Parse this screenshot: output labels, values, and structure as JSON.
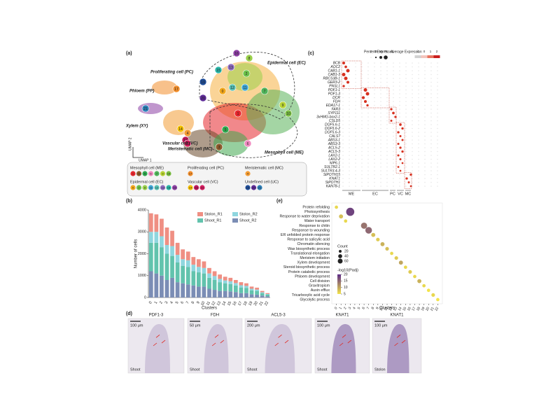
{
  "panel_letters": [
    "(a)",
    "(b)",
    "(c)",
    "(d)",
    "(e)"
  ],
  "panel_a": {
    "clusters": [
      0,
      1,
      2,
      3,
      4,
      5,
      6,
      7,
      8,
      9,
      10,
      11,
      12,
      13,
      14,
      15,
      16,
      17,
      18,
      19,
      20,
      21,
      22
    ],
    "cluster_colors": [
      "#f2a71b",
      "#e6262c",
      "#6cc24a",
      "#8b5a2b",
      "#f39c34",
      "#2fa84f",
      "#f08ac0",
      "#4fb35a",
      "#9ad04b",
      "#b7d334",
      "#7bc043",
      "#3fa7d6",
      "#59c2b5",
      "#8e6bbf",
      "#f5c000",
      "#2ab7a9",
      "#8d3fa4",
      "#f28e2b",
      "#c2185b",
      "#1f4e9a",
      "#5e2b97",
      "#2c7fb8",
      "#d81b60"
    ],
    "region_labels": [
      "Epidermal cell (EC)",
      "Proliferating cell (PC)",
      "Phloem (PP)",
      "Xylem (XY)",
      "Vascular cell (VC)",
      "Meristematic cell (MC)",
      "Mesophyll cell (ME)"
    ],
    "axis_x": "UMAP 1",
    "axis_y": "UMAP 2",
    "legend": [
      {
        "name": "Mesophyll cell (ME)",
        "clusters": [
          1,
          3,
          5,
          6,
          7,
          9,
          10
        ]
      },
      {
        "name": "Proliferating cell (PC)",
        "clusters": [
          17
        ]
      },
      {
        "name": "Meristematic cell (MC)",
        "clusters": [
          4
        ]
      },
      {
        "name": "Epidermal cell (EC)",
        "clusters": [
          0,
          2,
          8,
          11,
          12,
          13,
          15,
          16
        ]
      },
      {
        "name": "Vascular cell (VC)",
        "clusters": [
          14,
          18,
          22
        ]
      },
      {
        "name": "Undefined cell (UC)",
        "clusters": [
          19,
          20,
          21
        ]
      }
    ]
  },
  "chart_data": [
    {
      "type": "bar",
      "stacked": true,
      "ylabel": "Number of cells",
      "xlabel": "Clusters",
      "categories": [
        "0",
        "1",
        "2",
        "3",
        "4",
        "5",
        "6",
        "7",
        "8",
        "9",
        "10",
        "11",
        "12",
        "13",
        "14",
        "15",
        "16",
        "17",
        "18",
        "19",
        "20",
        "21",
        "22"
      ],
      "series": [
        {
          "name": "Shoot_R2",
          "color": "#7b8db5",
          "values": [
            1200,
            1100,
            1000,
            800,
            900,
            700,
            650,
            600,
            550,
            500,
            500,
            400,
            350,
            300,
            300,
            280,
            250,
            200,
            200,
            150,
            130,
            90,
            60
          ]
        },
        {
          "name": "Shoot_R1",
          "color": "#62c3ad",
          "values": [
            1300,
            1400,
            1300,
            1200,
            1000,
            900,
            800,
            800,
            650,
            650,
            600,
            500,
            450,
            400,
            350,
            330,
            300,
            260,
            240,
            180,
            170,
            110,
            70
          ]
        },
        {
          "name": "Stolon_R2",
          "color": "#8fd6df",
          "values": [
            500,
            500,
            500,
            400,
            450,
            350,
            300,
            300,
            300,
            250,
            250,
            200,
            180,
            150,
            130,
            130,
            110,
            100,
            90,
            70,
            60,
            40,
            30
          ]
        },
        {
          "name": "Stolon_R1",
          "color": "#ef8f83",
          "values": [
            850,
            800,
            800,
            800,
            700,
            550,
            450,
            400,
            350,
            350,
            300,
            250,
            220,
            200,
            170,
            160,
            140,
            140,
            120,
            100,
            90,
            60,
            40
          ]
        }
      ],
      "legend_order": [
        3,
        2,
        1,
        0
      ],
      "ylim": [
        0,
        4000
      ],
      "yticks": [
        0,
        1000,
        2000,
        3000,
        4000
      ]
    },
    {
      "type": "dot",
      "xlabel": "Clusters",
      "xticks": [
        0,
        1,
        2,
        3,
        4,
        5,
        6,
        7,
        8,
        9,
        10,
        11,
        12,
        13,
        14,
        15,
        16,
        17,
        18,
        19,
        20,
        21,
        22
      ],
      "xlim": [
        -1,
        23
      ],
      "terms": [
        {
          "name": "Protein refolding",
          "cluster": 0,
          "count": 10,
          "padj": 6
        },
        {
          "name": "Photosynthesis",
          "cluster": 3,
          "count": 60,
          "padj": 18
        },
        {
          "name": "Response to water deprivation",
          "cluster": 1,
          "count": 15,
          "padj": 8
        },
        {
          "name": "Water transport",
          "cluster": 2,
          "count": 10,
          "padj": 6
        },
        {
          "name": "Response to chitin",
          "cluster": 6,
          "count": 35,
          "padj": 14
        },
        {
          "name": "Response to wounding",
          "cluster": 7,
          "count": 40,
          "padj": 15
        },
        {
          "name": "ER unfolded protein response",
          "cluster": 8,
          "count": 15,
          "padj": 8
        },
        {
          "name": "Response to salicylic acid",
          "cluster": 9,
          "count": 12,
          "padj": 7
        },
        {
          "name": "Chromatin silencing",
          "cluster": 10,
          "count": 15,
          "padj": 9
        },
        {
          "name": "Wax biosynthetic process",
          "cluster": 11,
          "count": 12,
          "padj": 8
        },
        {
          "name": "Translational elongation",
          "cluster": 12,
          "count": 10,
          "padj": 6
        },
        {
          "name": "Meristem initiation",
          "cluster": 13,
          "count": 12,
          "padj": 7
        },
        {
          "name": "Xylem development",
          "cluster": 14,
          "count": 15,
          "padj": 10
        },
        {
          "name": "Steroid biosynthetic process",
          "cluster": 15,
          "count": 10,
          "padj": 6
        },
        {
          "name": "Protein catabolic process",
          "cluster": 16,
          "count": 12,
          "padj": 7
        },
        {
          "name": "Phloem development",
          "cluster": 17,
          "count": 10,
          "padj": 6
        },
        {
          "name": "Cell division",
          "cluster": 18,
          "count": 15,
          "padj": 9
        },
        {
          "name": "Gravitropism",
          "cluster": 19,
          "count": 10,
          "padj": 6
        },
        {
          "name": "Auxin efflux",
          "cluster": 20,
          "count": 10,
          "padj": 5
        },
        {
          "name": "Tricarboxylic acid cycle",
          "cluster": 21,
          "count": 12,
          "padj": 6
        },
        {
          "name": "Glycolytic process",
          "cluster": 22,
          "count": 10,
          "padj": 5
        }
      ],
      "size_title": "Count",
      "size_ticks": [
        20,
        40,
        60
      ],
      "color_title": "-log10(Padj)",
      "color_ticks": [
        5,
        10,
        15,
        20
      ],
      "color_range": [
        "#f3e44b",
        "#5b2a86"
      ]
    },
    {
      "type": "dotplot",
      "size_title": "Percent Expressed",
      "size_ticks": [
        0,
        25,
        50,
        75
      ],
      "color_title": "Average Expression",
      "color_ticks": [
        -1,
        0,
        1,
        2
      ],
      "groups": [
        "ME",
        "EC",
        "PC",
        "VC",
        "MC"
      ],
      "genes": [
        {
          "name": "BCB",
          "group": 0,
          "pct": 60
        },
        {
          "name": "AOC2",
          "group": 0,
          "pct": 55
        },
        {
          "name": "CAB1-1",
          "group": 0,
          "pct": 75
        },
        {
          "name": "CAB1-3",
          "group": 0,
          "pct": 75
        },
        {
          "name": "RBCS3B-1",
          "group": 0,
          "pct": 75
        },
        {
          "name": "GER3-2",
          "group": 0,
          "pct": 60
        },
        {
          "name": "PNSL1",
          "group": 0,
          "pct": 50
        },
        {
          "name": "PDF1-1",
          "group": 1,
          "pct": 75
        },
        {
          "name": "PDF1-3",
          "group": 1,
          "pct": 75
        },
        {
          "name": "DCR",
          "group": 1,
          "pct": 65
        },
        {
          "name": "FDH",
          "group": 1,
          "pct": 60
        },
        {
          "name": "EDA17-1",
          "group": 1,
          "pct": 50
        },
        {
          "name": "FAR3",
          "group": 2,
          "pct": 50
        },
        {
          "name": "SYP111",
          "group": 2,
          "pct": 55
        },
        {
          "name": "3xHMG-box2-1",
          "group": 2,
          "pct": 50
        },
        {
          "name": "CSLD5",
          "group": 2,
          "pct": 45
        },
        {
          "name": "DOF5.6-1",
          "group": 3,
          "pct": 55
        },
        {
          "name": "DOF5.6-2",
          "group": 3,
          "pct": 50
        },
        {
          "name": "DOF5.6-3",
          "group": 3,
          "pct": 50
        },
        {
          "name": "CALS7",
          "group": 3,
          "pct": 45
        },
        {
          "name": "ABS3-1",
          "group": 3,
          "pct": 45
        },
        {
          "name": "ABS3-3",
          "group": 3,
          "pct": 45
        },
        {
          "name": "ACL5-2",
          "group": 3,
          "pct": 50
        },
        {
          "name": "ACL5-3",
          "group": 3,
          "pct": 50
        },
        {
          "name": "LAX2-1",
          "group": 3,
          "pct": 45
        },
        {
          "name": "LAX2-2",
          "group": 3,
          "pct": 45
        },
        {
          "name": "NIP6.1",
          "group": 3,
          "pct": 40
        },
        {
          "name": "SULTR2.1",
          "group": 3,
          "pct": 40
        },
        {
          "name": "SULTR3.4-3",
          "group": 3,
          "pct": 40
        },
        {
          "name": "StPOTH15",
          "group": 4,
          "pct": 50
        },
        {
          "name": "KNAT1",
          "group": 4,
          "pct": 50
        },
        {
          "name": "StPOTH1",
          "group": 4,
          "pct": 45
        },
        {
          "name": "KAN78-1",
          "group": 4,
          "pct": 40
        }
      ]
    }
  ],
  "panel_d": [
    {
      "gene": "PDF1-3",
      "scale": "100 μm",
      "tissue": "Shoot"
    },
    {
      "gene": "FDH",
      "scale": "50 μm",
      "tissue": "Shoot"
    },
    {
      "gene": "ACL5-3",
      "scale": "200 μm",
      "tissue": "Shoot"
    },
    {
      "gene": "KNAT1",
      "scale": "100 μm",
      "tissue": "Shoot"
    },
    {
      "gene": "KNAT1",
      "scale": "100 μm",
      "tissue": "Stolon"
    }
  ]
}
